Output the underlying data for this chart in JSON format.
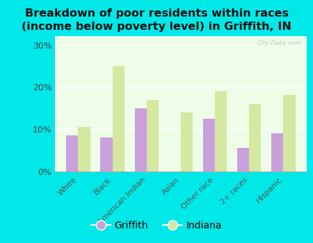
{
  "categories": [
    "White",
    "Black",
    "American Indian",
    "Asian",
    "Other race",
    "2+ races",
    "Hispanic"
  ],
  "griffith_values": [
    8.5,
    8.0,
    15.0,
    0.0,
    12.5,
    5.5,
    9.0
  ],
  "indiana_values": [
    10.5,
    25.0,
    17.0,
    14.0,
    19.0,
    16.0,
    18.0
  ],
  "griffith_color": "#c9a0dc",
  "indiana_color": "#d4e8a0",
  "title": "Breakdown of poor residents within races\n(income below poverty level) in Griffith, IN",
  "title_fontsize": 11.5,
  "ylabel_ticks": [
    0,
    10,
    20,
    30
  ],
  "ylim": [
    0,
    32
  ],
  "plot_bg": "#eefde8",
  "outer_bg": "#00e8e8",
  "watermark": "City-Data.com",
  "legend_labels": [
    "Griffith",
    "Indiana"
  ],
  "bar_width": 0.35
}
